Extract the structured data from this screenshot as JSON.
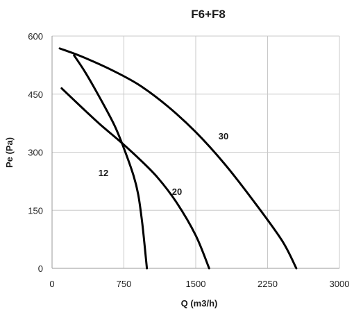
{
  "chart_data": {
    "type": "line",
    "title": "F6+F8",
    "xlabel": "Q (m3/h)",
    "ylabel": "Pe (Pa)",
    "xlim": [
      0,
      3000
    ],
    "ylim": [
      0,
      600
    ],
    "xticks": [
      "0",
      "750",
      "1500",
      "2250",
      "3000"
    ],
    "yticks": [
      "0",
      "150",
      "300",
      "450",
      "600"
    ],
    "grid": true,
    "legend": "none",
    "series": [
      {
        "name": "30",
        "x": [
          80,
          300,
          600,
          900,
          1200,
          1500,
          1800,
          2100,
          2400,
          2550
        ],
        "y": [
          568,
          548,
          515,
          475,
          420,
          352,
          270,
          175,
          72,
          0
        ]
      },
      {
        "name": "20",
        "x": [
          100,
          300,
          500,
          700,
          900,
          1100,
          1300,
          1500,
          1640
        ],
        "y": [
          465,
          418,
          372,
          330,
          285,
          235,
          170,
          85,
          0
        ]
      },
      {
        "name": "12",
        "x": [
          230,
          350,
          500,
          650,
          750,
          850,
          900,
          940,
          970,
          990
        ],
        "y": [
          550,
          505,
          440,
          370,
          310,
          240,
          190,
          120,
          50,
          0
        ]
      }
    ]
  }
}
